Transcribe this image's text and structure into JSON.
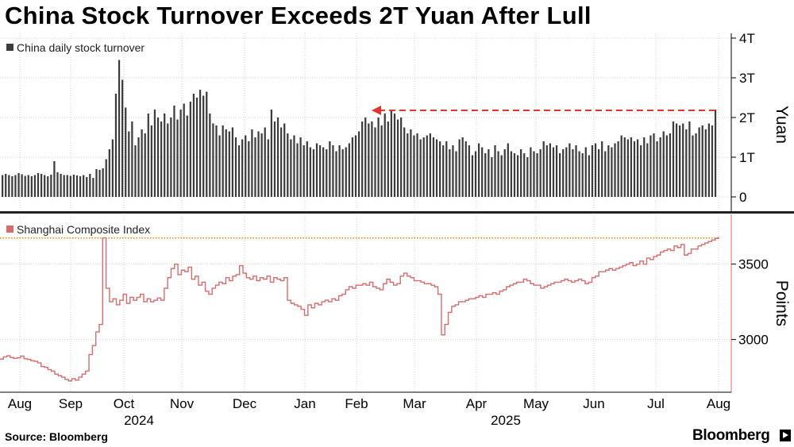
{
  "title": "China Stock Turnover Exceeds 2T Yuan After Lull",
  "source": "Source: Bloomberg",
  "brand": "Bloomberg",
  "colors": {
    "bar": "#3c3c3c",
    "line": "#d96b6b",
    "dashed_arrow": "#e0352f",
    "reference": "#e08a00",
    "grid": "#d0d0d0",
    "axis": "#000000"
  },
  "chart_data": [
    {
      "type": "bar",
      "title": "China daily stock turnover",
      "legend": "China daily stock turnover",
      "ylabel": "Yuan",
      "ylim": [
        0,
        4
      ],
      "yticks": [
        0,
        1,
        2,
        3,
        4
      ],
      "ytick_labels": [
        "0",
        "1T",
        "2T",
        "3T",
        "4T"
      ],
      "annotation": "dashed arrow from latest value back to Feb peak (~2.2T)",
      "values": [
        0.55,
        0.58,
        0.55,
        0.52,
        0.55,
        0.6,
        0.57,
        0.53,
        0.55,
        0.52,
        0.55,
        0.6,
        0.58,
        0.55,
        0.52,
        0.56,
        0.9,
        0.62,
        0.58,
        0.55,
        0.55,
        0.53,
        0.56,
        0.54,
        0.52,
        0.55,
        0.5,
        0.58,
        0.48,
        0.7,
        0.68,
        0.72,
        0.95,
        1.2,
        1.45,
        2.6,
        3.45,
        2.95,
        2.25,
        1.65,
        1.9,
        1.3,
        1.5,
        1.7,
        1.6,
        2.1,
        1.8,
        2.2,
        2.0,
        1.9,
        2.1,
        1.85,
        2.0,
        2.3,
        1.95,
        2.2,
        2.35,
        2.05,
        2.4,
        2.6,
        2.5,
        2.7,
        2.55,
        2.65,
        2.1,
        1.85,
        1.8,
        1.55,
        1.8,
        1.7,
        1.65,
        1.75,
        1.5,
        1.3,
        1.45,
        1.55,
        1.4,
        1.7,
        1.5,
        1.65,
        1.6,
        1.75,
        1.45,
        2.2,
        1.9,
        2.0,
        1.75,
        1.85,
        1.6,
        1.45,
        1.55,
        1.35,
        1.5,
        1.3,
        1.4,
        1.25,
        1.2,
        1.35,
        1.3,
        1.25,
        1.2,
        1.4,
        1.3,
        1.15,
        1.3,
        1.2,
        1.25,
        1.35,
        1.5,
        1.55,
        1.65,
        1.9,
        2.0,
        1.85,
        1.9,
        1.75,
        2.0,
        1.8,
        2.1,
        1.9,
        2.2,
        2.1,
        1.95,
        2.0,
        1.75,
        1.6,
        1.7,
        1.55,
        1.6,
        1.45,
        1.5,
        1.55,
        1.6,
        1.5,
        1.45,
        1.4,
        1.3,
        1.4,
        1.2,
        1.3,
        1.15,
        1.45,
        1.5,
        1.4,
        1.3,
        1.05,
        1.15,
        1.35,
        1.25,
        1.1,
        1.2,
        1.0,
        1.3,
        1.15,
        1.05,
        1.2,
        1.35,
        1.15,
        1.1,
        1.05,
        1.2,
        1.1,
        1.0,
        1.25,
        1.15,
        1.1,
        1.2,
        1.4,
        1.3,
        1.35,
        1.25,
        1.3,
        1.1,
        1.2,
        1.25,
        1.35,
        1.2,
        1.3,
        1.15,
        1.1,
        1.25,
        1.05,
        1.3,
        1.35,
        1.2,
        1.4,
        1.15,
        1.3,
        1.25,
        1.35,
        1.4,
        1.55,
        1.5,
        1.45,
        1.5,
        1.4,
        1.45,
        1.3,
        1.5,
        1.35,
        1.55,
        1.6,
        1.4,
        1.5,
        1.65,
        1.55,
        1.6,
        1.9,
        1.85,
        1.8,
        1.85,
        1.7,
        1.9,
        1.55,
        1.6,
        1.75,
        1.8,
        1.7,
        1.85,
        1.8,
        2.2
      ]
    },
    {
      "type": "line",
      "title": "Shanghai Composite Index",
      "legend": "Shanghai Composite Index",
      "ylabel": "Points",
      "ylim": [
        2650,
        3830
      ],
      "yticks": [
        3000,
        3500
      ],
      "ytick_labels": [
        "3000",
        "3500"
      ],
      "reference_line": 3673,
      "x_month_labels": [
        "Aug",
        "Sep",
        "Oct",
        "Nov",
        "Dec",
        "Jan",
        "Feb",
        "Mar",
        "Apr",
        "May",
        "Jun",
        "Jul",
        "Aug"
      ],
      "x_year_labels": [
        "2024",
        "2025"
      ],
      "values": [
        2870,
        2885,
        2892,
        2880,
        2875,
        2878,
        2890,
        2872,
        2868,
        2860,
        2855,
        2845,
        2820,
        2815,
        2800,
        2790,
        2770,
        2760,
        2750,
        2735,
        2725,
        2740,
        2730,
        2750,
        2770,
        2790,
        2900,
        2960,
        3050,
        3100,
        3675,
        3340,
        3250,
        3270,
        3230,
        3260,
        3300,
        3240,
        3280,
        3260,
        3280,
        3300,
        3250,
        3270,
        3250,
        3260,
        3275,
        3260,
        3340,
        3410,
        3470,
        3500,
        3430,
        3460,
        3450,
        3480,
        3400,
        3420,
        3360,
        3380,
        3320,
        3300,
        3340,
        3360,
        3380,
        3370,
        3410,
        3390,
        3420,
        3430,
        3490,
        3440,
        3410,
        3400,
        3420,
        3390,
        3410,
        3400,
        3420,
        3380,
        3410,
        3400,
        3390,
        3410,
        3260,
        3240,
        3230,
        3220,
        3200,
        3160,
        3230,
        3210,
        3240,
        3230,
        3250,
        3260,
        3250,
        3270,
        3260,
        3290,
        3300,
        3330,
        3350,
        3340,
        3360,
        3360,
        3370,
        3360,
        3380,
        3350,
        3340,
        3330,
        3370,
        3400,
        3380,
        3360,
        3370,
        3420,
        3440,
        3420,
        3410,
        3390,
        3390,
        3380,
        3370,
        3370,
        3360,
        3350,
        3300,
        3030,
        3100,
        3180,
        3220,
        3230,
        3250,
        3250,
        3260,
        3270,
        3270,
        3280,
        3290,
        3280,
        3300,
        3300,
        3310,
        3300,
        3320,
        3330,
        3350,
        3360,
        3370,
        3380,
        3380,
        3400,
        3390,
        3370,
        3360,
        3360,
        3340,
        3350,
        3360,
        3370,
        3380,
        3380,
        3390,
        3400,
        3390,
        3380,
        3390,
        3400,
        3390,
        3370,
        3380,
        3410,
        3420,
        3450,
        3450,
        3460,
        3470,
        3460,
        3470,
        3480,
        3490,
        3500,
        3510,
        3490,
        3500,
        3520,
        3500,
        3540,
        3530,
        3550,
        3560,
        3580,
        3590,
        3600,
        3590,
        3620,
        3610,
        3630,
        3560,
        3570,
        3600,
        3600,
        3620,
        3630,
        3640,
        3650,
        3660,
        3670,
        3680
      ]
    }
  ]
}
